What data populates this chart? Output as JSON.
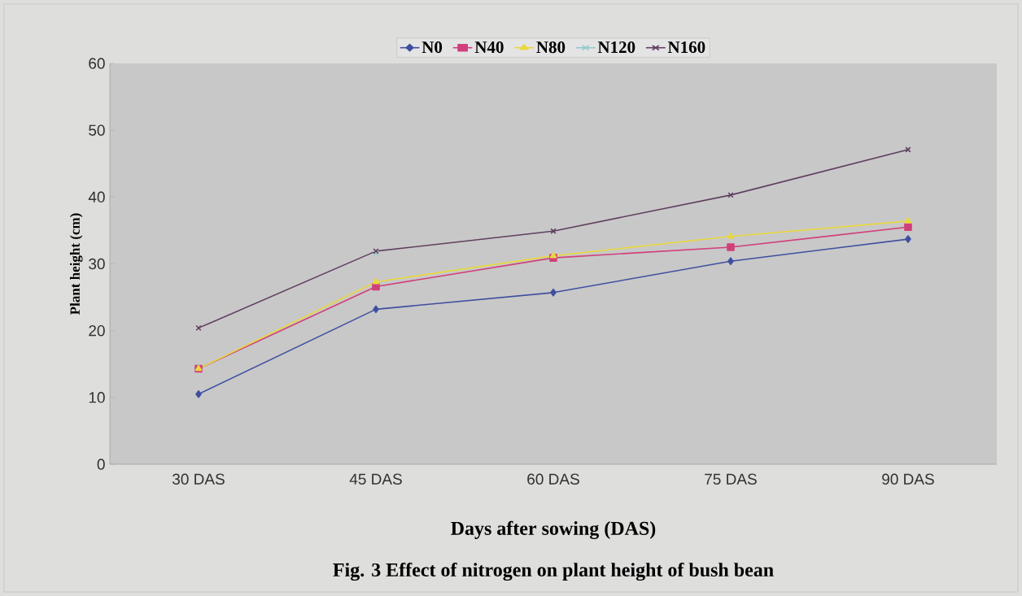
{
  "chart_data": {
    "type": "line",
    "xlabel": "Days after sowing (DAS)",
    "ylabel": "Plant height (cm)",
    "annotations": [
      "Fig. 3 Effect of nitrogen on plant height of bush bean"
    ],
    "categories": [
      "30 DAS",
      "45 DAS",
      "60 DAS",
      "75 DAS",
      "90 DAS"
    ],
    "series": [
      {
        "name": "N0",
        "color": "#4050a0",
        "marker": "diamond",
        "values": [
          10.5,
          23.2,
          25.7,
          30.4,
          33.7
        ]
      },
      {
        "name": "N40",
        "color": "#d0407a",
        "marker": "square",
        "values": [
          14.3,
          26.6,
          30.9,
          32.5,
          35.5
        ]
      },
      {
        "name": "N80",
        "color": "#e8d840",
        "marker": "triangle",
        "values": [
          14.3,
          27.3,
          31.2,
          34.1,
          36.4
        ]
      },
      {
        "name": "N120",
        "color": "#98c8d0",
        "marker": "cross",
        "values": [
          null,
          31.6,
          null,
          null,
          null
        ]
      },
      {
        "name": "N160",
        "color": "#604060",
        "marker": "cross",
        "values": [
          20.4,
          31.9,
          34.9,
          40.3,
          47.1
        ]
      }
    ],
    "ylim": [
      0,
      60
    ],
    "yticks": [
      0,
      10,
      20,
      30,
      40,
      50,
      60
    ],
    "legend": "top",
    "line_style": "solid"
  }
}
